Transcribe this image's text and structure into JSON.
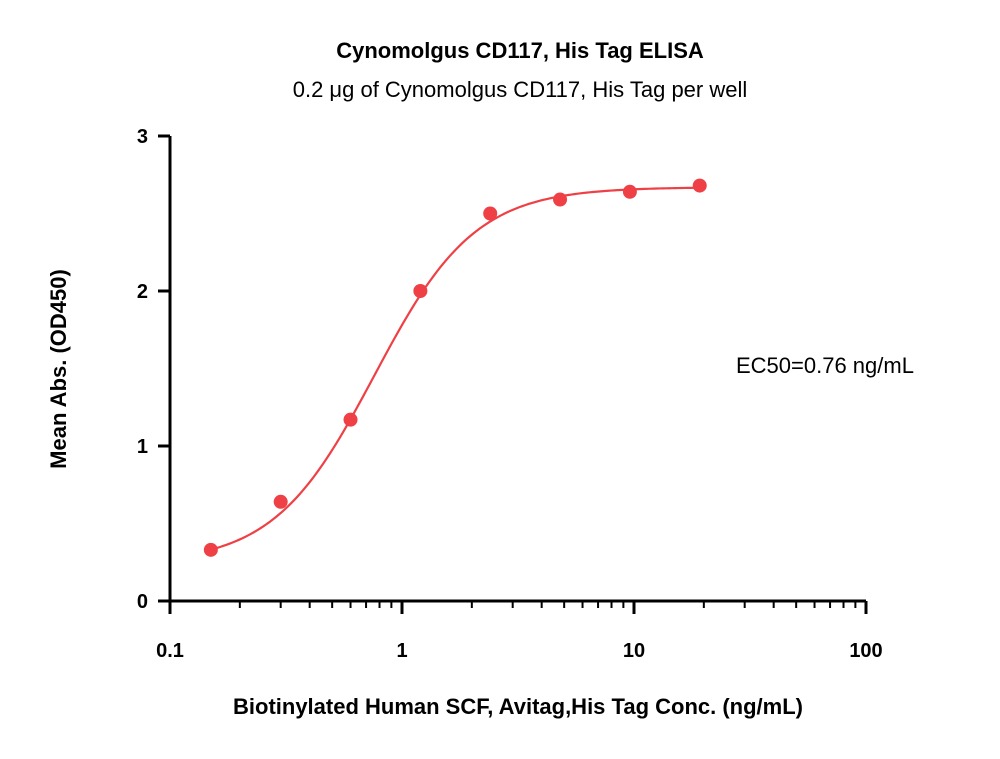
{
  "chart_data": {
    "type": "scatter",
    "title": "Cynomolgus CD117, His Tag ELISA",
    "subtitle": "0.2 μg of Cynomolgus CD117, His Tag per well",
    "xlabel": "Biotinylated Human SCF, Avitag,His Tag Conc. (ng/mL)",
    "ylabel": "Mean Abs. (OD450)",
    "x_scale": "log",
    "xlim": [
      0.1,
      100
    ],
    "ylim": [
      0,
      3
    ],
    "x_ticks": [
      "0.1",
      "1",
      "10",
      "100"
    ],
    "y_ticks": [
      "0",
      "1",
      "2",
      "3"
    ],
    "grid": false,
    "annotation": "EC50=0.76 ng/mL",
    "color": "#ee4045",
    "series": [
      {
        "x": [
          0.15,
          0.3,
          0.6,
          1.2,
          2.4,
          4.8,
          9.6,
          19.2
        ],
        "y": [
          0.33,
          0.64,
          1.17,
          2.0,
          2.5,
          2.59,
          2.64,
          2.68
        ]
      }
    ],
    "fit": {
      "model": "4PL",
      "bottom": 0.24,
      "top": 2.67,
      "ec50": 0.76,
      "hill": 2.0
    }
  }
}
